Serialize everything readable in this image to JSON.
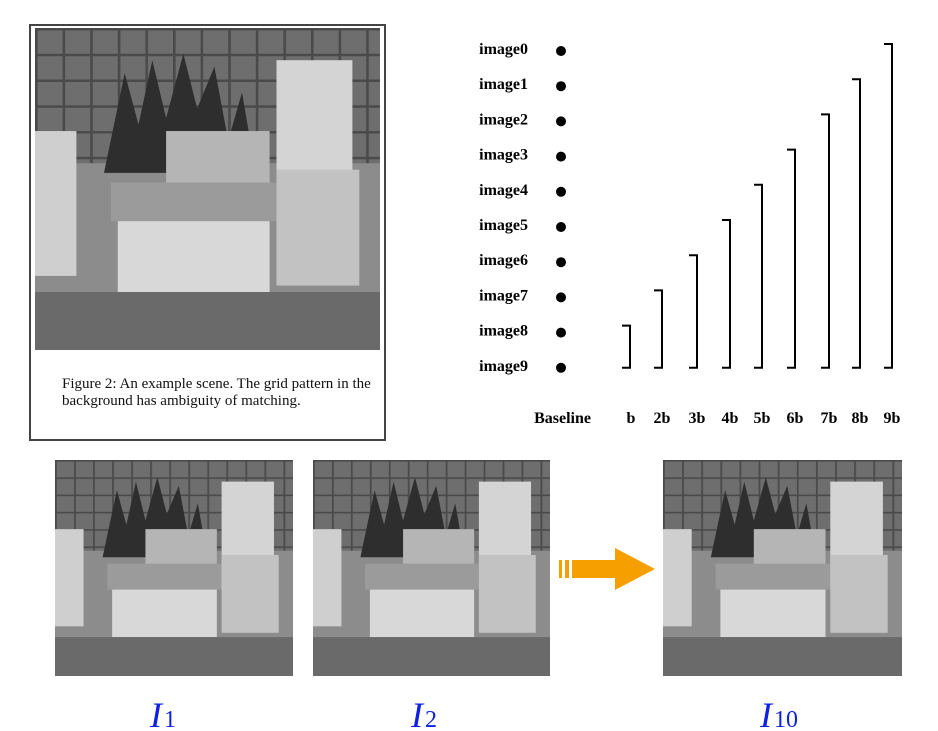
{
  "figure": {
    "caption": "Figure 2: An example scene.  The grid pattern in the background has ambiguity of matching."
  },
  "diagram": {
    "images": [
      "image0",
      "image1",
      "image2",
      "image3",
      "image4",
      "image5",
      "image6",
      "image7",
      "image8",
      "image9"
    ],
    "baseline_label": "Baseline",
    "baselines": [
      "b",
      "2b",
      "3b",
      "4b",
      "5b",
      "6b",
      "7b",
      "8b",
      "9b"
    ]
  },
  "frames": [
    {
      "label": "I",
      "subscript": "1"
    },
    {
      "label": "I",
      "subscript": "2"
    },
    {
      "label": "I",
      "subscript": "10"
    }
  ]
}
